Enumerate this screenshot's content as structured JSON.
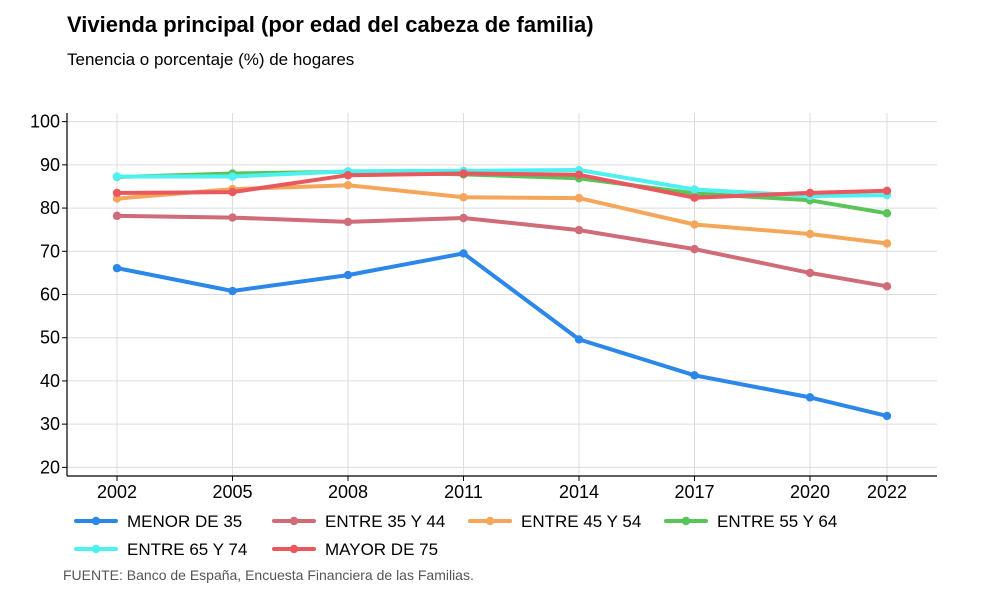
{
  "chart_data": {
    "type": "line",
    "title": "Vivienda principal (por edad del cabeza de familia)",
    "subtitle": "Tenencia o porcentaje (%) de hogares",
    "xlabel": "",
    "ylabel": "",
    "x": [
      "2002",
      "2005",
      "2008",
      "2011",
      "2014",
      "2017",
      "2020",
      "2022"
    ],
    "ylim": [
      18,
      102
    ],
    "yticks": [
      20,
      30,
      40,
      50,
      60,
      70,
      80,
      90,
      100
    ],
    "grid": true,
    "legend_position": "bottom",
    "series": [
      {
        "name": "MENOR DE 35",
        "color": "#2b87e8",
        "values": [
          66.1,
          60.8,
          64.5,
          69.5,
          49.6,
          41.3,
          36.2,
          31.9
        ]
      },
      {
        "name": "ENTRE 35 Y 44",
        "color": "#d06b78",
        "values": [
          78.2,
          77.8,
          76.8,
          77.7,
          74.9,
          70.5,
          65.0,
          61.9
        ]
      },
      {
        "name": "ENTRE 45 Y 54",
        "color": "#f5a65b",
        "values": [
          82.2,
          84.4,
          85.3,
          82.5,
          82.3,
          76.2,
          74.0,
          71.8
        ]
      },
      {
        "name": "ENTRE 55 Y 64",
        "color": "#59c45a",
        "values": [
          87.2,
          88.0,
          88.4,
          87.8,
          86.9,
          83.4,
          81.8,
          78.8
        ]
      },
      {
        "name": "ENTRE 65 Y 74",
        "color": "#4ff0f0",
        "values": [
          87.3,
          87.3,
          88.5,
          88.6,
          88.8,
          84.3,
          82.8,
          83.0
        ]
      },
      {
        "name": "MAYOR DE 75",
        "color": "#e8585e",
        "values": [
          83.5,
          83.7,
          87.6,
          88.0,
          87.7,
          82.4,
          83.5,
          84.0
        ]
      }
    ]
  },
  "source": "FUENTE: Banco de España, Encuesta Financiera de las Familias."
}
